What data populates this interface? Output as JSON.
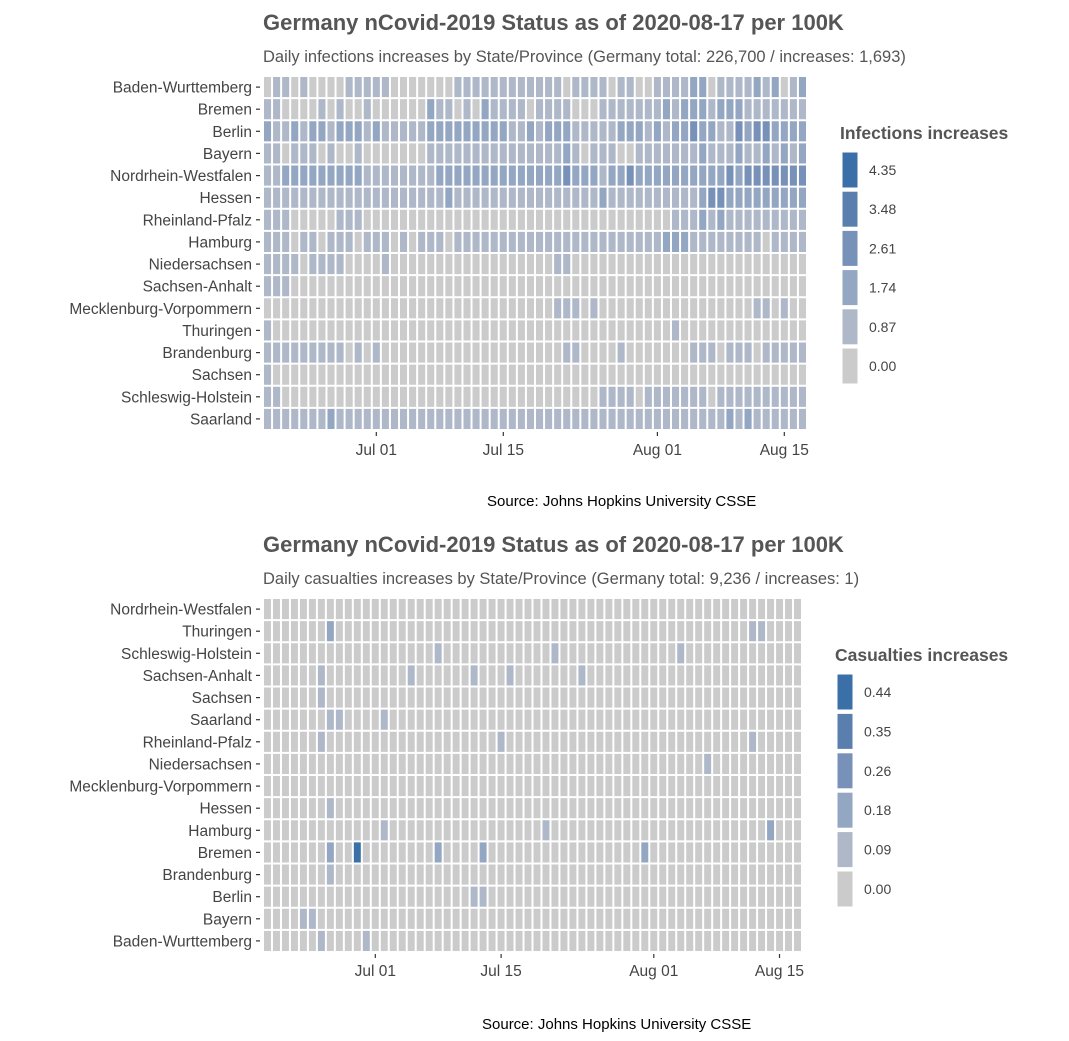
{
  "chart_data": [
    {
      "type": "heatmap",
      "title": "Germany nCovid-2019 Status as of 2020-08-17 per 100K",
      "subtitle": "Daily infections increases by State/Province (Germany total: 226,700 / increases: 1,693)",
      "caption": "Source: Johns Hopkins University CSSE",
      "legend_title": "Infections increases",
      "legend_breaks": [
        "4.35",
        "3.48",
        "2.61",
        "1.74",
        "0.87",
        "0.00"
      ],
      "legend_colors": [
        "#3b6fa8",
        "#5a7fae",
        "#7791b8",
        "#93a6c2",
        "#aeb8c9",
        "#cbcbcb"
      ],
      "x_ticks": [
        "Jul 01",
        "Jul 15",
        "Aug 01",
        "Aug 15"
      ],
      "x_range": [
        "2020-06-19",
        "2020-08-17"
      ],
      "rows": [
        "Baden-Wurttemberg",
        "Bremen",
        "Berlin",
        "Bayern",
        "Nordrhein-Westfalen",
        "Hessen",
        "Rheinland-Pfalz",
        "Hamburg",
        "Niedersachsen",
        "Sachsen-Anhalt",
        "Mecklenburg-Vorpommern",
        "Thuringen",
        "Brandenburg",
        "Sachsen",
        "Schleswig-Holstein",
        "Saarland"
      ],
      "values": [
        "0110100001111100000001111111111110111101100111122011112120120",
        "1100001010010000002110102111101111000111111121222122211111111",
        "2112122122212111112222222221121222111112221212232211323322221",
        "1101110100100000001111111111111112101110011111112111211212121",
        "1122222222211111111222222222222223222122322222222223233333333",
        "1111111111111111111121111111111111111211111111112332222222222",
        "1110000011100000000000000000000000000000000001112121111111111",
        "1110110111011101011101111111111111111111111122211111111011111",
        "1111011110000100000000000000000011000000000000000000000000000",
        "1110000000000000000000000000000000000000000000000000000000000",
        "0000000000000000000000000000000011101000000000000000001101000",
        "1000000000000000000000000000000000000000000001000000000000000",
        "1111111110101000000000000000000001100001000000011101110111111",
        "1000000000000000000000000000000000000000000000000000000000000",
        "1100000000000000000000000000000000000111101111111011111111111",
        "1111111211111111111111111111111111111111111111111112121111112"
      ]
    },
    {
      "type": "heatmap",
      "title": "Germany nCovid-2019 Status as of 2020-08-17 per 100K",
      "subtitle": "Daily casualties increases by State/Province (Germany total: 9,236 / increases: 1)",
      "caption": "Source: Johns Hopkins University CSSE",
      "legend_title": "Casualties increases",
      "legend_breaks": [
        "0.44",
        "0.35",
        "0.26",
        "0.18",
        "0.09",
        "0.00"
      ],
      "legend_colors": [
        "#3b6fa8",
        "#5a7fae",
        "#7791b8",
        "#93a6c2",
        "#aeb8c9",
        "#cbcbcb"
      ],
      "x_ticks": [
        "Jul 01",
        "Jul 15",
        "Aug 01",
        "Aug 15"
      ],
      "x_range": [
        "2020-06-19",
        "2020-08-17"
      ],
      "rows": [
        "Nordrhein-Westfalen",
        "Thuringen",
        "Schleswig-Holstein",
        "Sachsen-Anhalt",
        "Sachsen",
        "Saarland",
        "Rheinland-Pfalz",
        "Niedersachsen",
        "Mecklenburg-Vorpommern",
        "Hessen",
        "Hamburg",
        "Bremen",
        "Brandenburg",
        "Berlin",
        "Bayern",
        "Baden-Wurttemberg"
      ],
      "values": [
        "0000000000000000000000000000000000000000000000000000000000000",
        "0000000200000000000000000000000000000000000000000000001100000",
        "0000000000000000000100000000000010000000000000100000000000000",
        "0000001000000000100000010001000000010000000000000000000000000",
        "0000001000000000000000000000000000000000000000000000000000000",
        "0000000110000100000000000000000000000000000000000000000000000",
        "0000001000000000000000000010000000000000000000000000001000000",
        "0000000000000000000000000000000000000000000000000100000000000",
        "0000000000000000000000000000000000000000000000000000000000000",
        "0000000100000000000000000000000000000000000000000000000000000",
        "0000000000000100000000000000000100000000000000000000000020000",
        "0000000200500000000200002000000000000000002000000000000000000",
        "0000000100000000000000000000000000000000000000000000000000000",
        "0000000000000000000000011000000000000000000000000000000000000",
        "0000110000000000000000000000000000000000000000000000000000000",
        "0000001000010000000000000000000000000000000000000000000000000"
      ]
    }
  ]
}
